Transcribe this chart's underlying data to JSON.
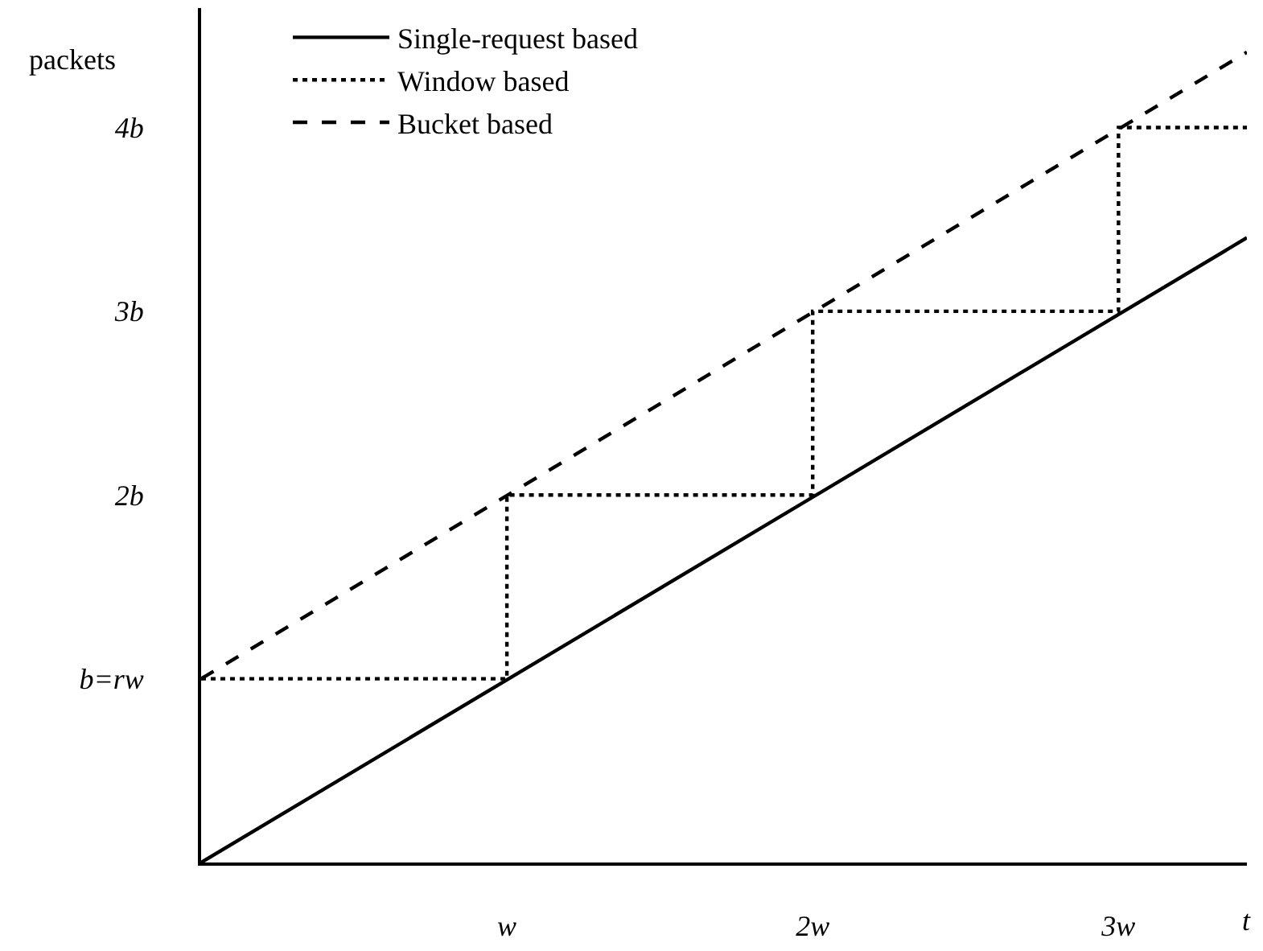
{
  "chart_data": {
    "type": "line",
    "xlabel": "t",
    "ylabel": "packets",
    "xlim": [
      0,
      3.42
    ],
    "ylim": [
      0,
      4.65
    ],
    "xticks": [
      {
        "value": 1,
        "label": "w"
      },
      {
        "value": 2,
        "label": "2w"
      },
      {
        "value": 3,
        "label": "3w"
      }
    ],
    "yticks": [
      {
        "value": 1,
        "label": "b=rw"
      },
      {
        "value": 2,
        "label": "2b"
      },
      {
        "value": 3,
        "label": "3b"
      },
      {
        "value": 4,
        "label": "4b"
      }
    ],
    "legend": "top left",
    "marker": "none",
    "series": [
      {
        "name": "Single-request based",
        "color": "#000000",
        "line_style": "solid",
        "x": [
          0,
          3.42
        ],
        "values": [
          0,
          3.4
        ]
      },
      {
        "name": "Window based",
        "color": "#000000",
        "line_style": "dotted",
        "type": "step",
        "x": [
          0,
          1,
          2,
          3,
          3.42
        ],
        "values": [
          1,
          2,
          3,
          4,
          4
        ]
      },
      {
        "name": "Bucket based",
        "color": "#000000",
        "line_style": "dashed",
        "x": [
          0,
          3.42
        ],
        "values": [
          1,
          4.41
        ]
      }
    ]
  }
}
